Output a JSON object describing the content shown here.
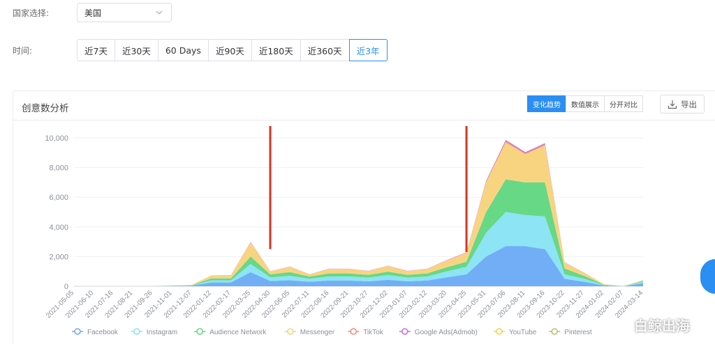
{
  "country": {
    "label": "国家选择:",
    "value": "美国"
  },
  "time": {
    "label": "时间:",
    "options": [
      "近7天",
      "近30天",
      "60 Days",
      "近90天",
      "近180天",
      "近360天",
      "近3年"
    ],
    "active_index": 6
  },
  "panel": {
    "title": "创意数分析",
    "view_toggle": [
      "变化趋势",
      "数值展示",
      "分开对比"
    ],
    "active_view": 0,
    "export_label": "导出"
  },
  "watermark": "白鲸出海",
  "colors": {
    "accent": "#2a8ef2",
    "annotation_line": "#d7341f",
    "Facebook": "#6aaaf4",
    "Instagram": "#86e3f4",
    "Audience Network": "#5fd67f",
    "Messenger": "#f8d27a",
    "TikTok": "#f08a74",
    "Google Ads(Admob)": "#c46be0",
    "YouTube": "#f5d24b",
    "Pinterest": "#b8c06a"
  },
  "chart_data": {
    "type": "area",
    "stacked": true,
    "grid": "horizontal",
    "legend_position": "bottom",
    "ylim": [
      0,
      10000
    ],
    "y_ticks": [
      "0",
      "2,000",
      "4,000",
      "6,000",
      "8,000",
      "10,000"
    ],
    "x": [
      "2021-05-05",
      "2021-06-10",
      "2021-07-16",
      "2021-08-21",
      "2021-09-26",
      "2021-11-01",
      "2021-12-07",
      "2022-01-12",
      "2022-02-17",
      "2022-03-25",
      "2022-04-30",
      "2022-06-05",
      "2022-07-11",
      "2022-08-16",
      "2022-09-21",
      "2022-10-27",
      "2022-12-02",
      "2023-01-07",
      "2023-02-12",
      "2023-03-20",
      "2023-04-25",
      "2023-05-31",
      "2023-07-06",
      "2023-08-11",
      "2023-09-16",
      "2023-10-22",
      "2023-11-27",
      "2024-01-02",
      "2024-02-07",
      "2024-03-14"
    ],
    "series": [
      {
        "name": "Facebook",
        "values": [
          0,
          0,
          0,
          0,
          0,
          20,
          40,
          250,
          250,
          950,
          350,
          400,
          300,
          380,
          380,
          330,
          430,
          330,
          380,
          600,
          800,
          2000,
          2700,
          2700,
          2500,
          500,
          300,
          50,
          0,
          200
        ]
      },
      {
        "name": "Instagram",
        "values": [
          0,
          0,
          0,
          0,
          0,
          10,
          20,
          150,
          150,
          550,
          250,
          300,
          200,
          280,
          280,
          250,
          320,
          250,
          280,
          400,
          500,
          1600,
          2300,
          2100,
          2200,
          300,
          200,
          30,
          0,
          100
        ]
      },
      {
        "name": "Audience Network",
        "values": [
          0,
          0,
          0,
          0,
          0,
          10,
          10,
          120,
          120,
          500,
          200,
          250,
          150,
          200,
          200,
          180,
          230,
          180,
          200,
          280,
          350,
          1400,
          2200,
          2200,
          2300,
          400,
          200,
          30,
          0,
          60
        ]
      },
      {
        "name": "Messenger",
        "values": [
          0,
          0,
          0,
          0,
          0,
          10,
          20,
          200,
          220,
          950,
          200,
          350,
          150,
          300,
          300,
          250,
          380,
          250,
          300,
          450,
          600,
          2000,
          2500,
          1900,
          2500,
          400,
          200,
          30,
          0,
          50
        ]
      },
      {
        "name": "TikTok",
        "values": [
          0,
          0,
          0,
          0,
          0,
          0,
          0,
          5,
          5,
          20,
          5,
          10,
          5,
          10,
          10,
          10,
          10,
          10,
          10,
          15,
          20,
          50,
          80,
          70,
          70,
          10,
          5,
          0,
          0,
          0
        ]
      },
      {
        "name": "Google Ads(Admob)",
        "values": [
          0,
          0,
          0,
          0,
          0,
          0,
          0,
          5,
          5,
          20,
          5,
          10,
          5,
          10,
          10,
          10,
          10,
          10,
          10,
          15,
          20,
          50,
          80,
          70,
          70,
          10,
          5,
          0,
          0,
          0
        ]
      },
      {
        "name": "YouTube",
        "values": [
          0,
          0,
          0,
          0,
          0,
          0,
          0,
          0,
          0,
          0,
          0,
          0,
          0,
          0,
          0,
          0,
          0,
          0,
          0,
          0,
          0,
          0,
          0,
          0,
          0,
          0,
          0,
          0,
          0,
          0
        ]
      },
      {
        "name": "Pinterest",
        "values": [
          0,
          0,
          0,
          0,
          0,
          0,
          0,
          0,
          0,
          0,
          0,
          0,
          0,
          0,
          0,
          0,
          0,
          0,
          0,
          0,
          0,
          0,
          0,
          0,
          0,
          0,
          0,
          0,
          0,
          0
        ]
      }
    ],
    "annotations": [
      {
        "type": "vertical-line",
        "y_from": 2500,
        "y_to": 10800,
        "x_at": "2022-04-30"
      },
      {
        "type": "vertical-line",
        "y_from": 2300,
        "y_to": 10800,
        "x_at": "2023-04-25"
      }
    ]
  }
}
